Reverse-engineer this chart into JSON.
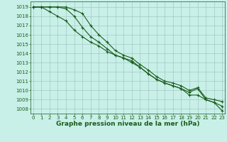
{
  "x": [
    0,
    1,
    2,
    3,
    4,
    5,
    6,
    7,
    8,
    9,
    10,
    11,
    12,
    13,
    14,
    15,
    16,
    17,
    18,
    19,
    20,
    21,
    22,
    23
  ],
  "s1": [
    1019.0,
    1019.0,
    1019.0,
    1019.0,
    1019.0,
    1018.7,
    1018.3,
    1017.0,
    1016.0,
    1015.2,
    1014.3,
    1013.8,
    1013.5,
    1012.8,
    1012.2,
    1011.5,
    1011.0,
    1010.8,
    1010.5,
    1010.0,
    1010.3,
    1009.2,
    1009.0,
    1008.8
  ],
  "s2": [
    1019.0,
    1019.0,
    1019.0,
    1019.0,
    1018.8,
    1018.0,
    1016.8,
    1015.8,
    1015.2,
    1014.5,
    1013.8,
    1013.5,
    1013.2,
    1012.5,
    1011.8,
    1011.2,
    1010.8,
    1010.5,
    1010.2,
    1009.8,
    1010.2,
    1009.0,
    1008.7,
    1008.3
  ],
  "s3": [
    1019.0,
    1019.0,
    1018.5,
    1018.0,
    1017.5,
    1016.5,
    1015.8,
    1015.2,
    1014.8,
    1014.2,
    1013.8,
    1013.5,
    1013.0,
    1012.5,
    1011.8,
    1011.2,
    1010.8,
    1010.5,
    1010.2,
    1009.5,
    1009.5,
    1009.0,
    1008.7,
    1007.8
  ],
  "ylim": [
    1007.5,
    1019.6
  ],
  "xlim": [
    -0.3,
    23.3
  ],
  "yticks": [
    1008,
    1009,
    1010,
    1011,
    1012,
    1013,
    1014,
    1015,
    1016,
    1017,
    1018,
    1019
  ],
  "xticks": [
    0,
    1,
    2,
    3,
    4,
    5,
    6,
    7,
    8,
    9,
    10,
    11,
    12,
    13,
    14,
    15,
    16,
    17,
    18,
    19,
    20,
    21,
    22,
    23
  ],
  "xlabel": "Graphe pression niveau de la mer (hPa)",
  "line_color": "#1a5c1a",
  "bg_color": "#c8f0e8",
  "grid_color": "#9abfb8",
  "tick_fontsize": 5.0,
  "label_fontsize": 6.5,
  "marker": "+",
  "linewidth": 0.8,
  "markersize": 3.0
}
